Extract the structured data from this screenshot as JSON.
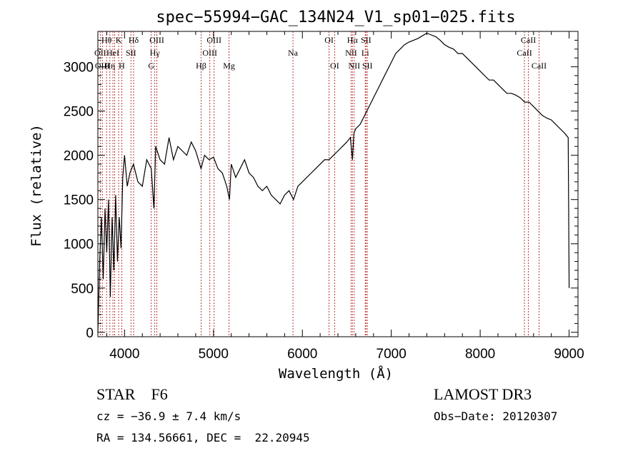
{
  "chart_data": {
    "type": "line",
    "title": "spec−55994−GAC_134N24_V1_sp01−025.fits",
    "xlabel": "Wavelength (Å)",
    "ylabel": "Flux (relative)",
    "xlim": [
      3700,
      9100
    ],
    "ylim": [
      -50,
      3400
    ],
    "x_ticks": [
      4000,
      5000,
      6000,
      7000,
      8000,
      9000
    ],
    "y_ticks": [
      0,
      500,
      1000,
      1500,
      2000,
      2500,
      3000
    ],
    "grid": false,
    "series": [
      {
        "name": "spectrum",
        "x": [
          3700,
          3720,
          3740,
          3760,
          3780,
          3800,
          3820,
          3840,
          3860,
          3880,
          3900,
          3920,
          3940,
          3960,
          3980,
          4000,
          4030,
          4060,
          4100,
          4150,
          4200,
          4250,
          4300,
          4330,
          4350,
          4400,
          4450,
          4500,
          4550,
          4600,
          4650,
          4700,
          4750,
          4800,
          4860,
          4900,
          4950,
          5000,
          5050,
          5100,
          5150,
          5180,
          5200,
          5250,
          5300,
          5350,
          5400,
          5450,
          5500,
          5550,
          5600,
          5650,
          5700,
          5750,
          5800,
          5850,
          5900,
          5950,
          6000,
          6050,
          6100,
          6150,
          6200,
          6250,
          6300,
          6350,
          6400,
          6450,
          6500,
          6540,
          6563,
          6580,
          6600,
          6650,
          6700,
          6750,
          6800,
          6850,
          6900,
          6950,
          7000,
          7050,
          7100,
          7150,
          7200,
          7250,
          7300,
          7350,
          7400,
          7450,
          7500,
          7550,
          7600,
          7650,
          7700,
          7750,
          7800,
          7850,
          7900,
          7950,
          8000,
          8050,
          8100,
          8150,
          8200,
          8250,
          8300,
          8350,
          8400,
          8450,
          8500,
          8550,
          8600,
          8650,
          8700,
          8750,
          8800,
          8850,
          8900,
          8950,
          8990,
          9000
        ],
        "y": [
          0,
          800,
          1300,
          600,
          1400,
          900,
          1500,
          400,
          1300,
          700,
          1550,
          800,
          1300,
          950,
          1750,
          2000,
          1650,
          1800,
          1900,
          1700,
          1650,
          1950,
          1850,
          1400,
          2100,
          1950,
          1900,
          2200,
          1950,
          2100,
          2050,
          2000,
          2150,
          2050,
          1850,
          2000,
          1950,
          1980,
          1850,
          1800,
          1650,
          1500,
          1900,
          1750,
          1850,
          1950,
          1800,
          1750,
          1650,
          1600,
          1650,
          1550,
          1500,
          1450,
          1550,
          1600,
          1500,
          1650,
          1700,
          1750,
          1800,
          1850,
          1900,
          1950,
          1950,
          2000,
          2050,
          2100,
          2150,
          2200,
          1950,
          2250,
          2300,
          2350,
          2450,
          2550,
          2650,
          2750,
          2850,
          2950,
          3050,
          3150,
          3200,
          3250,
          3280,
          3300,
          3320,
          3350,
          3380,
          3360,
          3340,
          3300,
          3250,
          3220,
          3200,
          3150,
          3150,
          3100,
          3050,
          3000,
          2950,
          2900,
          2850,
          2850,
          2800,
          2750,
          2700,
          2700,
          2680,
          2650,
          2600,
          2600,
          2550,
          2500,
          2450,
          2420,
          2400,
          2350,
          2300,
          2250,
          2200,
          500
        ]
      }
    ],
    "lines": [
      {
        "wl": 3727,
        "label": "OII",
        "row": 1
      },
      {
        "wl": 3750,
        "label": "OIII",
        "row": 2
      },
      {
        "wl": 3798,
        "label": "Hθ",
        "row": 0
      },
      {
        "wl": 3835,
        "label": "Hη",
        "row": 2
      },
      {
        "wl": 3869,
        "label": "HeI",
        "row": 1
      },
      {
        "wl": 3889,
        "label": "",
        "row": 0
      },
      {
        "wl": 3934,
        "label": "K",
        "row": 0
      },
      {
        "wl": 3969,
        "label": "H",
        "row": 2
      },
      {
        "wl": 4072,
        "label": "SII",
        "row": 1
      },
      {
        "wl": 4102,
        "label": "Hδ",
        "row": 0
      },
      {
        "wl": 4300,
        "label": "G",
        "row": 2
      },
      {
        "wl": 4340,
        "label": "Hγ",
        "row": 1
      },
      {
        "wl": 4363,
        "label": "OIII",
        "row": 0
      },
      {
        "wl": 4861,
        "label": "Hβ",
        "row": 2
      },
      {
        "wl": 4959,
        "label": "OIII",
        "row": 1
      },
      {
        "wl": 5007,
        "label": "OIII",
        "row": 0
      },
      {
        "wl": 5175,
        "label": "Mg",
        "row": 2
      },
      {
        "wl": 5894,
        "label": "Na",
        "row": 1
      },
      {
        "wl": 6300,
        "label": "OI",
        "row": 0
      },
      {
        "wl": 6363,
        "label": "OI",
        "row": 2
      },
      {
        "wl": 6548,
        "label": "NII",
        "row": 1
      },
      {
        "wl": 6563,
        "label": "Hα",
        "row": 0
      },
      {
        "wl": 6583,
        "label": "NII",
        "row": 2
      },
      {
        "wl": 6707,
        "label": "Li",
        "row": 1
      },
      {
        "wl": 6716,
        "label": "SII",
        "row": 0
      },
      {
        "wl": 6731,
        "label": "SII",
        "row": 2
      },
      {
        "wl": 8498,
        "label": "CaII",
        "row": 1
      },
      {
        "wl": 8542,
        "label": "CaII",
        "row": 0
      },
      {
        "wl": 8662,
        "label": "CaII",
        "row": 2
      }
    ]
  },
  "info": {
    "classification": "STAR    F6",
    "survey": "LAMOST DR3",
    "redshift": "cz = −36.9 ± 7.4 km/s",
    "obs_date": "Obs−Date: 20120307",
    "coords": "RA = 134.56661, DEC =  22.20945"
  }
}
